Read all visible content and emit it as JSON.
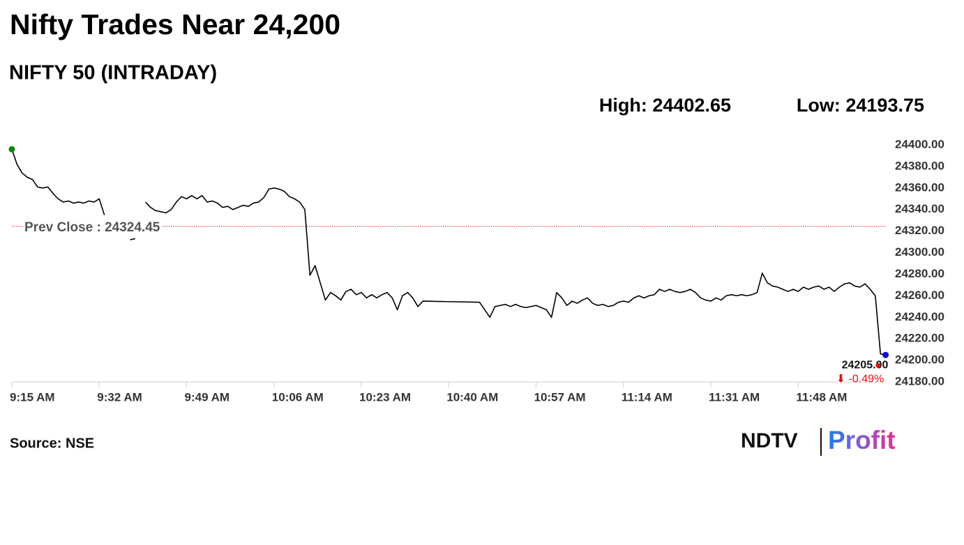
{
  "chart_data": {
    "type": "line",
    "title": "Nifty Trades Near 24,200",
    "subtitle": "NIFTY 50 (INTRADAY)",
    "high": "High: 24402.65",
    "low": "Low: 24193.75",
    "xlim": [
      555,
      726
    ],
    "xticks": [
      {
        "value": 555,
        "label": "9:15 AM"
      },
      {
        "value": 572,
        "label": "9:32 AM"
      },
      {
        "value": 589,
        "label": "9:49 AM"
      },
      {
        "value": 606,
        "label": "10:06 AM"
      },
      {
        "value": 623,
        "label": "10:23 AM"
      },
      {
        "value": 640,
        "label": "10:40 AM"
      },
      {
        "value": 657,
        "label": "10:57 AM"
      },
      {
        "value": 674,
        "label": "11:14 AM"
      },
      {
        "value": 691,
        "label": "11:31 AM"
      },
      {
        "value": 708,
        "label": "11:48 AM"
      }
    ],
    "ylim": [
      24180,
      24400
    ],
    "yticks": [
      {
        "value": 24400,
        "label": "24400.00"
      },
      {
        "value": 24380,
        "label": "24380.00"
      },
      {
        "value": 24360,
        "label": "24360.00"
      },
      {
        "value": 24340,
        "label": "24340.00"
      },
      {
        "value": 24320,
        "label": "24320.00"
      },
      {
        "value": 24300,
        "label": "24300.00"
      },
      {
        "value": 24280,
        "label": "24280.00"
      },
      {
        "value": 24260,
        "label": "24260.00"
      },
      {
        "value": 24240,
        "label": "24240.00"
      },
      {
        "value": 24220,
        "label": "24220.00"
      },
      {
        "value": 24200,
        "label": "24200.00"
      },
      {
        "value": 24180,
        "label": "24180.00"
      }
    ],
    "color": "#000000",
    "markers": {
      "start": "#0a8a0a",
      "end": "#1010c8"
    },
    "reference_line": {
      "value": 24324.45,
      "label": "Prev Close : 24324.45",
      "color": "#d32f2f"
    },
    "last_value": {
      "value": 24205,
      "label": "24205.00"
    },
    "change": {
      "value": -0.49,
      "label": "⬇ -0.49%",
      "color": "#e01010"
    },
    "x": [
      555,
      556,
      557,
      558,
      559,
      560,
      561,
      562,
      563,
      564,
      565,
      566,
      567,
      568,
      569,
      570,
      571,
      572,
      573,
      574,
      575,
      576,
      577,
      578,
      579,
      580,
      581,
      582,
      583,
      584,
      585,
      586,
      587,
      588,
      589,
      590,
      591,
      592,
      593,
      594,
      595,
      596,
      597,
      598,
      599,
      600,
      601,
      602,
      603,
      604,
      605,
      606,
      607,
      608,
      609,
      610,
      611,
      612,
      613,
      614,
      615,
      616,
      617,
      618,
      619,
      620,
      621,
      622,
      623,
      624,
      625,
      626,
      627,
      628,
      629,
      630,
      631,
      632,
      633,
      634,
      635,
      646,
      647,
      648,
      649,
      650,
      651,
      652,
      653,
      654,
      655,
      656,
      657,
      658,
      659,
      660,
      661,
      662,
      663,
      664,
      665,
      666,
      667,
      668,
      669,
      670,
      671,
      672,
      673,
      674,
      675,
      676,
      677,
      678,
      679,
      680,
      681,
      682,
      683,
      684,
      685,
      686,
      687,
      688,
      689,
      690,
      691,
      692,
      693,
      694,
      695,
      696,
      697,
      698,
      699,
      700,
      701,
      702,
      703,
      704,
      705,
      706,
      707,
      708,
      709,
      710,
      711,
      712,
      713,
      714,
      715,
      716,
      717,
      718,
      719,
      720,
      721,
      722,
      723,
      724,
      725
    ],
    "values": [
      24396,
      24382,
      24374,
      24370,
      24368,
      24361,
      24360,
      24361,
      24355,
      24350,
      24347,
      24348,
      24346,
      24347,
      24346,
      24348,
      24347,
      24350,
      24335,
      null,
      null,
      null,
      null,
      24312,
      24313,
      null,
      24347,
      24342,
      24339,
      24338,
      24337,
      24340,
      24347,
      24352,
      24350,
      24353,
      24350,
      24353,
      24347,
      24348,
      24346,
      24342,
      24343,
      24340,
      24342,
      24344,
      24343,
      24346,
      24347,
      24351,
      24359,
      24360,
      24359,
      24357,
      24352,
      24350,
      24347,
      24340,
      24279,
      24288,
      24272,
      24256,
      24263,
      24260,
      24256,
      24264,
      24266,
      24261,
      24263,
      24258,
      24261,
      24258,
      24261,
      24263,
      24258,
      24247,
      24260,
      24263,
      24258,
      24250,
      24255,
      24254,
      24247,
      24240,
      24250,
      24251,
      24252,
      24250,
      24252,
      24250,
      24249,
      24250,
      24251,
      24249,
      24247,
      24240,
      24263,
      24258,
      24251,
      24255,
      24253,
      24256,
      24258,
      24253,
      24251,
      24252,
      24250,
      24251,
      24254,
      24255,
      24254,
      24258,
      24260,
      24258,
      24260,
      24261,
      24266,
      24264,
      24266,
      24264,
      24263,
      24264,
      24266,
      24263,
      24258,
      24256,
      24255,
      24258,
      24256,
      24260,
      24261,
      24260,
      24261,
      24260,
      24261,
      24263,
      24281,
      24272,
      24269,
      24268,
      24266,
      24264,
      24266,
      24264,
      24268,
      24266,
      24268,
      24269,
      24266,
      24268,
      24264,
      24268,
      24271,
      24272,
      24269,
      24268,
      24271,
      24266,
      24260,
      24206,
      24205
    ]
  },
  "source": "Source: NSE",
  "logo": {
    "brand": "NDTV",
    "product": "Profit"
  }
}
